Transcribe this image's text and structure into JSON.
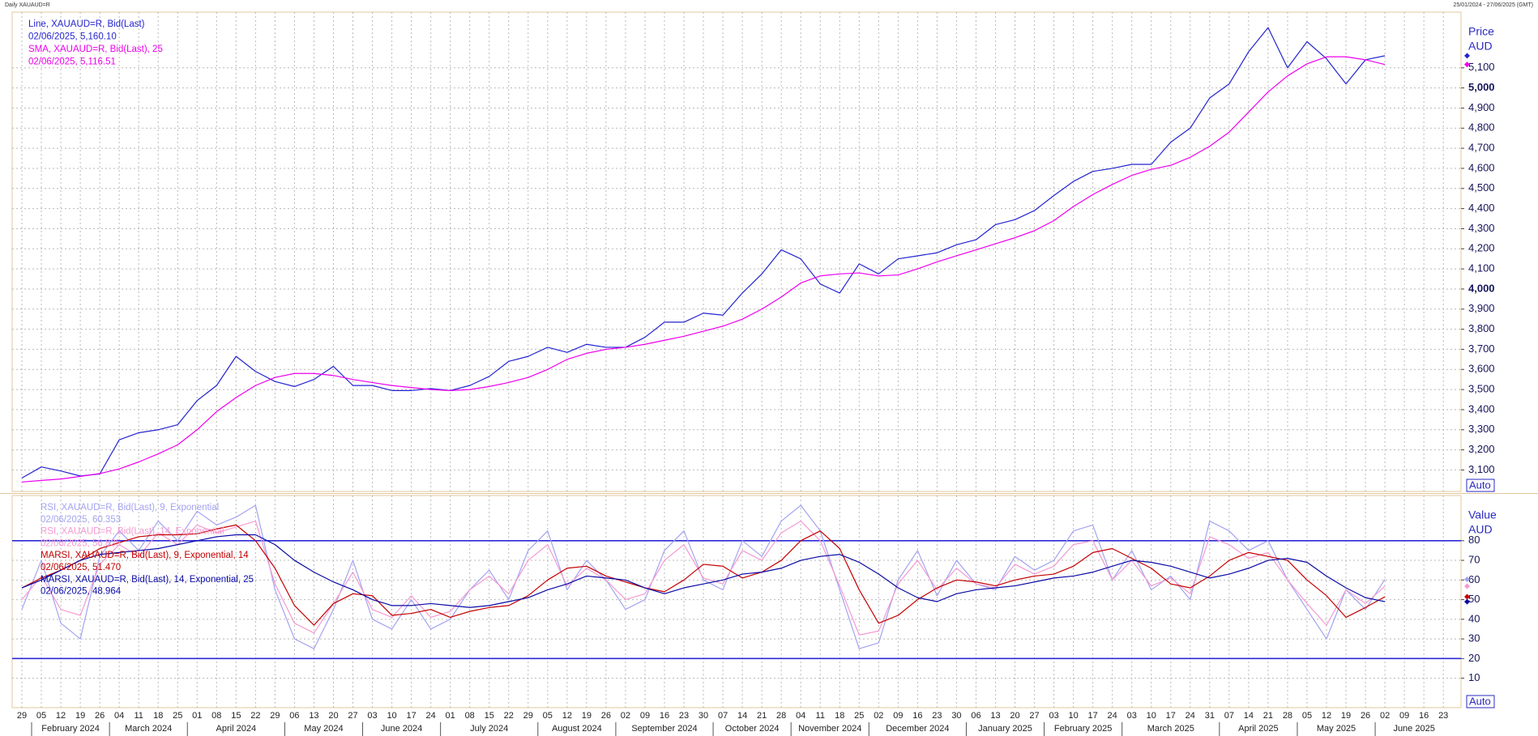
{
  "header": {
    "title": "Daily XAUAUD=R",
    "range": "25/01/2024 - 27/06/2025 (GMT)"
  },
  "chart_data": [
    {
      "type": "line",
      "ylabel": "Price",
      "yunit": "AUD",
      "auto_label": "Auto",
      "ylim": [
        2993,
        5377
      ],
      "yticks": [
        {
          "value": 3100,
          "label": "3,100"
        },
        {
          "value": 3200,
          "label": "3,200"
        },
        {
          "value": 3300,
          "label": "3,300"
        },
        {
          "value": 3400,
          "label": "3,400"
        },
        {
          "value": 3500,
          "label": "3,500"
        },
        {
          "value": 3600,
          "label": "3,600"
        },
        {
          "value": 3700,
          "label": "3,700"
        },
        {
          "value": 3800,
          "label": "3,800"
        },
        {
          "value": 3900,
          "label": "3,900"
        },
        {
          "value": 4000,
          "label": "4,000"
        },
        {
          "value": 4100,
          "label": "4,100"
        },
        {
          "value": 4200,
          "label": "4,200"
        },
        {
          "value": 4300,
          "label": "4,300"
        },
        {
          "value": 4400,
          "label": "4,400"
        },
        {
          "value": 4500,
          "label": "4,500"
        },
        {
          "value": 4600,
          "label": "4,600"
        },
        {
          "value": 4700,
          "label": "4,700"
        },
        {
          "value": 4800,
          "label": "4,800"
        },
        {
          "value": 4900,
          "label": "4,900"
        },
        {
          "value": 5000,
          "label": "5,000"
        },
        {
          "value": 5100,
          "label": "5,100"
        }
      ],
      "grid": true,
      "series": [
        {
          "name": "Line, XAUAUD=R, Bid(Last)",
          "color": "#2424d0",
          "last_label": "02/06/2025, 5,160.10",
          "values": [
            3060,
            3115,
            3095,
            3070,
            3080,
            3250,
            3285,
            3300,
            3325,
            3445,
            3520,
            3665,
            3590,
            3540,
            3515,
            3550,
            3615,
            3520,
            3520,
            3495,
            3495,
            3505,
            3495,
            3520,
            3565,
            3640,
            3665,
            3710,
            3685,
            3725,
            3710,
            3710,
            3760,
            3835,
            3835,
            3880,
            3870,
            3980,
            4075,
            4195,
            4150,
            4025,
            3980,
            4125,
            4075,
            4150,
            4165,
            4180,
            4220,
            4245,
            4320,
            4345,
            4390,
            4465,
            4535,
            4585,
            4600,
            4620,
            4620,
            4730,
            4800,
            4950,
            5020,
            5180,
            5300,
            5100,
            5230,
            5145,
            5020,
            5140,
            5160.1,
            null,
            null,
            null
          ]
        },
        {
          "name": "SMA, XAUAUD=R, Bid(Last),  25",
          "color": "#ee00ee",
          "last_label": "02/06/2025, 5,116.51",
          "values": [
            3040,
            3048,
            3055,
            3068,
            3082,
            3105,
            3140,
            3180,
            3225,
            3300,
            3390,
            3460,
            3520,
            3560,
            3580,
            3580,
            3570,
            3550,
            3535,
            3520,
            3510,
            3500,
            3495,
            3500,
            3515,
            3535,
            3560,
            3600,
            3650,
            3680,
            3700,
            3710,
            3725,
            3745,
            3765,
            3790,
            3815,
            3850,
            3900,
            3960,
            4030,
            4065,
            4075,
            4080,
            4065,
            4070,
            4100,
            4135,
            4165,
            4195,
            4225,
            4255,
            4290,
            4340,
            4410,
            4470,
            4520,
            4565,
            4595,
            4615,
            4655,
            4710,
            4780,
            4880,
            4980,
            5060,
            5120,
            5155,
            5155,
            5140,
            5116.51,
            null,
            null,
            null
          ]
        }
      ]
    },
    {
      "type": "line",
      "ylabel": "Value",
      "yunit": "AUD",
      "auto_label": "Auto",
      "ylim": [
        -5,
        103
      ],
      "yticks": [
        10,
        20,
        30,
        40,
        50,
        60,
        70,
        80
      ],
      "grid": true,
      "reference_lines": [
        20,
        80
      ],
      "reference_color": "#2a2ad8",
      "categories": [
        "29",
        "05",
        "12",
        "19",
        "26",
        "04",
        "11",
        "18",
        "25",
        "01",
        "08",
        "15",
        "22",
        "29",
        "06",
        "13",
        "20",
        "27",
        "03",
        "10",
        "17",
        "24",
        "01",
        "08",
        "15",
        "22",
        "29",
        "05",
        "12",
        "19",
        "26",
        "02",
        "09",
        "16",
        "23",
        "30",
        "07",
        "14",
        "21",
        "28",
        "04",
        "11",
        "18",
        "25",
        "02",
        "09",
        "16",
        "23",
        "30",
        "06",
        "13",
        "20",
        "27",
        "03",
        "10",
        "17",
        "24",
        "03",
        "10",
        "17",
        "24",
        "31",
        "07",
        "14",
        "21",
        "28",
        "05",
        "12",
        "19",
        "26",
        "02",
        "09",
        "16",
        "23"
      ],
      "months": [
        "February 2024",
        "March 2024",
        "April 2024",
        "May 2024",
        "June 2024",
        "July 2024",
        "August 2024",
        "September 2024",
        "October 2024",
        "November 2024",
        "December 2024",
        "January 2025",
        "February 2025",
        "March 2025",
        "April 2025",
        "May 2025",
        "June 2025"
      ],
      "series": [
        {
          "name": "RSI, XAUAUD=R, Bid(Last),  9, Exponential",
          "color": "#a3a3f2",
          "last_label": "02/06/2025, 60.353",
          "values": [
            45,
            70,
            38,
            30,
            72,
            85,
            75,
            90,
            80,
            95,
            88,
            92,
            98,
            55,
            30,
            25,
            45,
            70,
            40,
            35,
            50,
            35,
            40,
            55,
            65,
            50,
            75,
            85,
            55,
            70,
            60,
            45,
            50,
            75,
            85,
            60,
            55,
            80,
            72,
            90,
            98,
            85,
            55,
            25,
            28,
            60,
            75,
            52,
            70,
            58,
            55,
            72,
            65,
            70,
            85,
            88,
            60,
            75,
            55,
            62,
            50,
            90,
            85,
            75,
            80,
            60,
            45,
            30,
            55,
            45,
            60.353,
            null,
            null,
            null
          ]
        },
        {
          "name": "RSI, XAUAUD=R, Bid(Last),  14, Exponential",
          "color": "#f59ad2",
          "last_label": "02/06/2025, 56.825",
          "values": [
            50,
            62,
            45,
            42,
            68,
            78,
            72,
            84,
            78,
            88,
            84,
            87,
            90,
            58,
            38,
            33,
            48,
            64,
            45,
            41,
            52,
            41,
            44,
            55,
            62,
            53,
            70,
            78,
            57,
            66,
            60,
            50,
            53,
            70,
            78,
            61,
            58,
            75,
            70,
            84,
            90,
            80,
            57,
            32,
            34,
            58,
            70,
            55,
            66,
            58,
            56,
            68,
            63,
            67,
            78,
            80,
            60,
            70,
            57,
            61,
            53,
            82,
            78,
            71,
            74,
            60,
            48,
            37,
            55,
            48,
            56.825,
            null,
            null,
            null
          ]
        },
        {
          "name": "MARSI, XAUAUD=R, Bid(Last),  9, Exponential, 14",
          "color": "#c40000",
          "last_label": "02/06/2025, 51.470",
          "values": [
            56,
            61,
            65,
            70,
            76,
            79,
            82,
            83,
            83,
            83.5,
            86,
            88,
            80,
            66,
            47,
            37,
            48,
            53,
            52,
            42,
            43,
            45,
            41,
            44,
            46,
            47,
            52,
            60,
            66,
            67,
            62,
            59,
            56,
            54,
            60,
            68,
            67,
            61,
            64,
            70,
            80,
            85,
            76,
            55,
            38,
            42,
            50,
            56,
            60,
            59,
            57,
            60,
            62,
            63,
            67,
            74,
            76,
            71,
            66,
            58,
            56,
            62,
            70,
            74,
            72,
            70,
            60,
            52,
            41,
            46,
            51.47,
            null,
            null,
            null
          ]
        },
        {
          "name": "MARSI, XAUAUD=R, Bid(Last),  14, Exponential, 25",
          "color": "#0a0aa6",
          "last_label": "02/06/2025, 48.964",
          "values": [
            56,
            60,
            65,
            70,
            73,
            74,
            75,
            76,
            78,
            80,
            82,
            83,
            83,
            78,
            70,
            64,
            59,
            55,
            50,
            47,
            47,
            48,
            47,
            46,
            47,
            49,
            51,
            55,
            58,
            62,
            61,
            60,
            56,
            53,
            56,
            58,
            60,
            63,
            64,
            66,
            70,
            72,
            73,
            69,
            63,
            56,
            51,
            49,
            53,
            55,
            56,
            57,
            59,
            61,
            62,
            64,
            67,
            70,
            69,
            67,
            64,
            61,
            63,
            66,
            70,
            71,
            69,
            62,
            56,
            51,
            48.964,
            null,
            null,
            null
          ]
        }
      ]
    }
  ]
}
